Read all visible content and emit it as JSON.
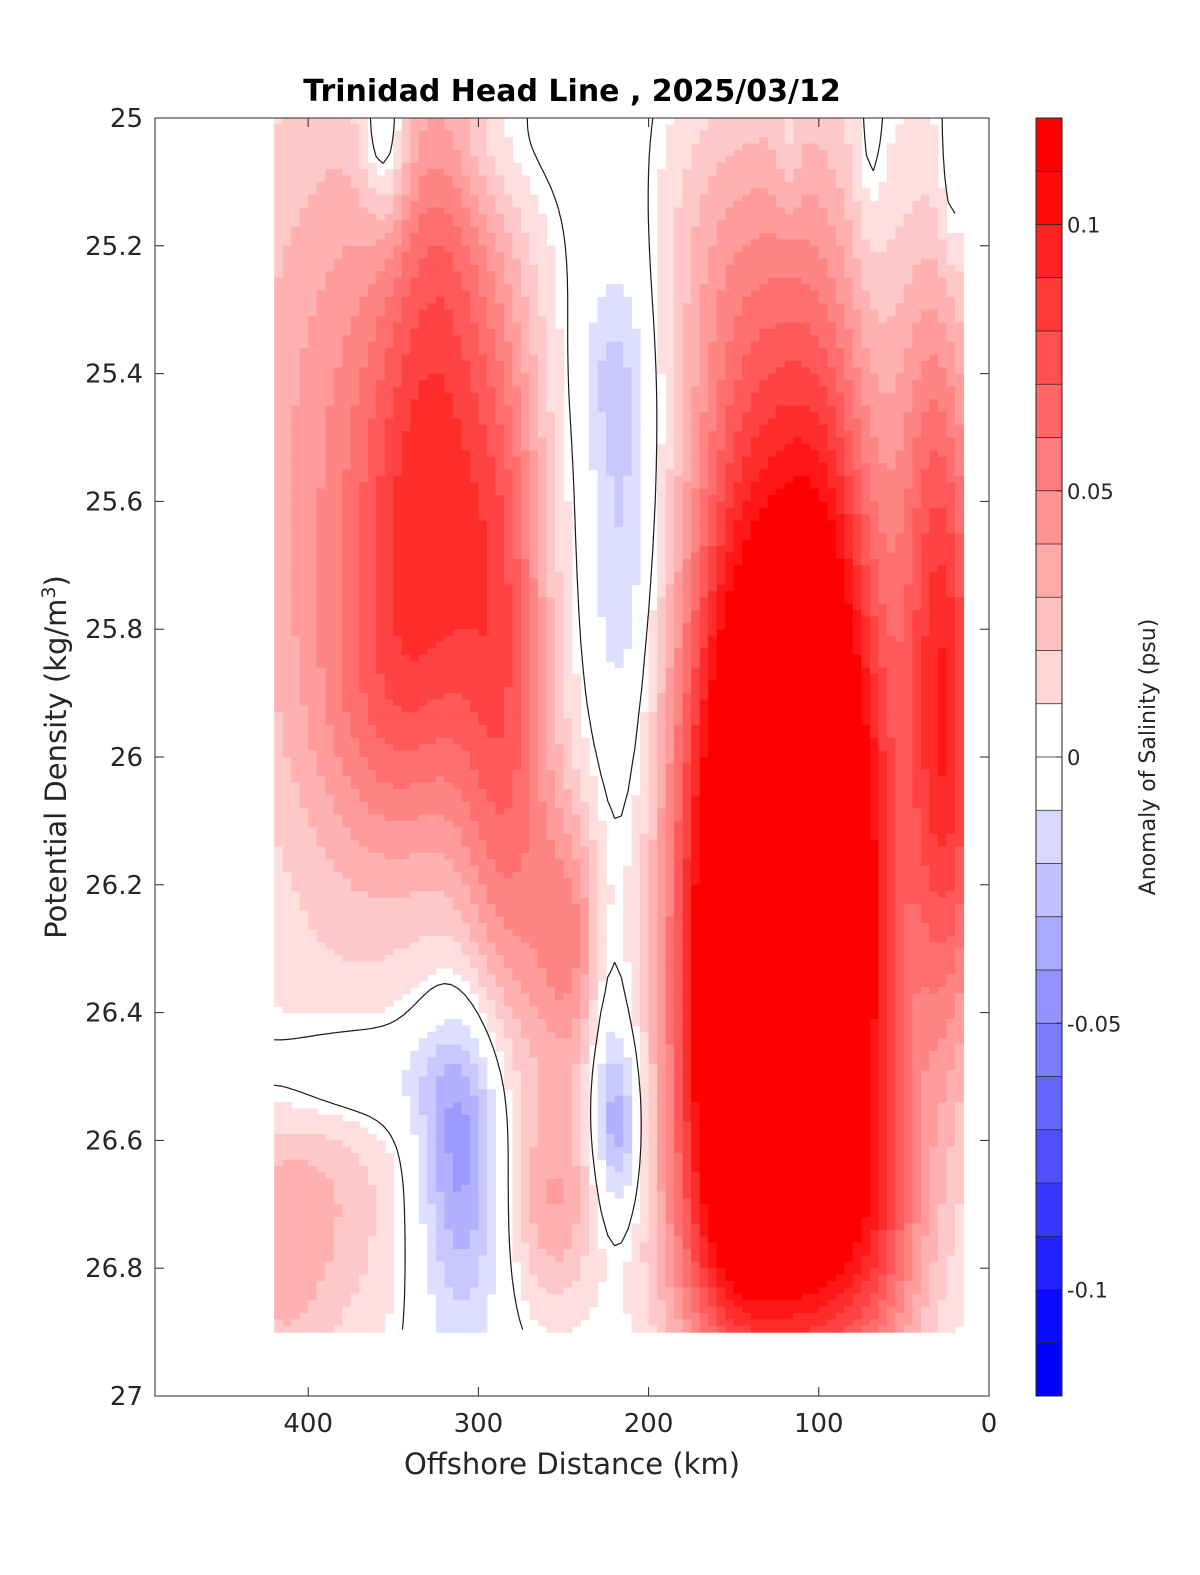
{
  "chart_data": {
    "type": "heatmap",
    "subtype": "filled-contour",
    "title": "Trinidad Head Line , 2025/03/12",
    "xlabel": "Offshore Distance (km)",
    "ylabel_main": "Potential Density (kg/m",
    "ylabel_sup": "3",
    "ylabel_close": ")",
    "colorbar_label": "Anomaly of Salinity (psu)",
    "x_axis": {
      "range": [
        490,
        0
      ],
      "reversed": true,
      "ticks": [
        400,
        300,
        200,
        100,
        0
      ],
      "tick_labels": [
        "400",
        "300",
        "200",
        "100",
        "0"
      ]
    },
    "y_axis": {
      "range": [
        25,
        27
      ],
      "reversed": true,
      "ticks": [
        25,
        25.2,
        25.4,
        25.6,
        25.8,
        26,
        26.2,
        26.4,
        26.6,
        26.8,
        27
      ],
      "tick_labels": [
        "25",
        "25.2",
        "25.4",
        "25.6",
        "25.8",
        "26",
        "26.2",
        "26.4",
        "26.6",
        "26.8",
        "27"
      ]
    },
    "colorbar": {
      "range": [
        -0.12,
        0.12
      ],
      "step": 0.01,
      "ticks": [
        0.1,
        0.05,
        0,
        -0.05,
        -0.1
      ],
      "tick_labels": [
        "0.1",
        "0.05",
        "0",
        "-0.05",
        "-0.1"
      ],
      "neg_color": "#0000ff",
      "pos_color": "#ff0000",
      "zero_color": "#ffffff"
    },
    "data_extent": {
      "x": [
        20,
        420
      ],
      "y": [
        25,
        26.9
      ]
    },
    "anomaly_features": [
      {
        "x": 330,
        "y": 25.65,
        "sx": 28,
        "sy": 0.3,
        "value": 0.06
      },
      {
        "x": 380,
        "y": 25.55,
        "sx": 55,
        "sy": 0.5,
        "value": 0.045
      },
      {
        "x": 360,
        "y": 25.95,
        "sx": 30,
        "sy": 0.18,
        "value": 0.02
      },
      {
        "x": 285,
        "y": 25.8,
        "sx": 20,
        "sy": 0.4,
        "value": 0.055
      },
      {
        "x": 320,
        "y": 25.15,
        "sx": 20,
        "sy": 0.25,
        "value": 0.03
      },
      {
        "x": 245,
        "y": 26.3,
        "sx": 15,
        "sy": 0.15,
        "value": 0.04
      },
      {
        "x": 270,
        "y": 26.2,
        "sx": 25,
        "sy": 0.25,
        "value": 0.02
      },
      {
        "x": 255,
        "y": 26.7,
        "sx": 18,
        "sy": 0.12,
        "value": 0.035
      },
      {
        "x": 390,
        "y": 26.7,
        "sx": 35,
        "sy": 0.2,
        "value": 0.025
      },
      {
        "x": 420,
        "y": 26.8,
        "sx": 20,
        "sy": 0.15,
        "value": 0.02
      },
      {
        "x": 150,
        "y": 26.15,
        "sx": 28,
        "sy": 0.4,
        "value": 0.12
      },
      {
        "x": 150,
        "y": 26.55,
        "sx": 25,
        "sy": 0.25,
        "value": 0.07
      },
      {
        "x": 95,
        "y": 26.1,
        "sx": 25,
        "sy": 0.4,
        "value": 0.12
      },
      {
        "x": 100,
        "y": 26.55,
        "sx": 30,
        "sy": 0.3,
        "value": 0.06
      },
      {
        "x": 120,
        "y": 26.8,
        "sx": 50,
        "sy": 0.15,
        "value": 0.04
      },
      {
        "x": 140,
        "y": 25.6,
        "sx": 25,
        "sy": 0.35,
        "value": 0.035
      },
      {
        "x": 100,
        "y": 25.5,
        "sx": 25,
        "sy": 0.4,
        "value": 0.04
      },
      {
        "x": 25,
        "y": 26.0,
        "sx": 18,
        "sy": 0.35,
        "value": 0.09
      },
      {
        "x": 35,
        "y": 25.5,
        "sx": 18,
        "sy": 0.3,
        "value": 0.035
      },
      {
        "x": 160,
        "y": 25.2,
        "sx": 30,
        "sy": 0.2,
        "value": 0.02
      },
      {
        "x": 60,
        "y": 26.7,
        "sx": 20,
        "sy": 0.2,
        "value": 0.03
      },
      {
        "x": 65,
        "y": 26.2,
        "sx": 12,
        "sy": 0.3,
        "value": 0.02
      },
      {
        "x": 355,
        "y": 25.03,
        "sx": 10,
        "sy": 0.1,
        "value": -0.035
      },
      {
        "x": 295,
        "y": 25.05,
        "sx": 25,
        "sy": 0.08,
        "value": -0.012
      },
      {
        "x": 215,
        "y": 25.6,
        "sx": 15,
        "sy": 0.3,
        "value": -0.025
      },
      {
        "x": 225,
        "y": 25.4,
        "sx": 12,
        "sy": 0.08,
        "value": -0.01
      },
      {
        "x": 310,
        "y": 26.58,
        "sx": 18,
        "sy": 0.15,
        "value": -0.045
      },
      {
        "x": 310,
        "y": 26.8,
        "sx": 18,
        "sy": 0.15,
        "value": -0.015
      },
      {
        "x": 380,
        "y": 26.5,
        "sx": 40,
        "sy": 0.07,
        "value": -0.025
      },
      {
        "x": 218,
        "y": 26.58,
        "sx": 10,
        "sy": 0.1,
        "value": -0.04
      },
      {
        "x": 225,
        "y": 26.4,
        "sx": 8,
        "sy": 0.15,
        "value": -0.015
      },
      {
        "x": 70,
        "y": 25.05,
        "sx": 6,
        "sy": 0.12,
        "value": -0.012
      },
      {
        "x": 118,
        "y": 25.05,
        "sx": 5,
        "sy": 0.08,
        "value": -0.012
      },
      {
        "x": 22,
        "y": 25.1,
        "sx": 5,
        "sy": 0.1,
        "value": -0.015
      }
    ]
  }
}
